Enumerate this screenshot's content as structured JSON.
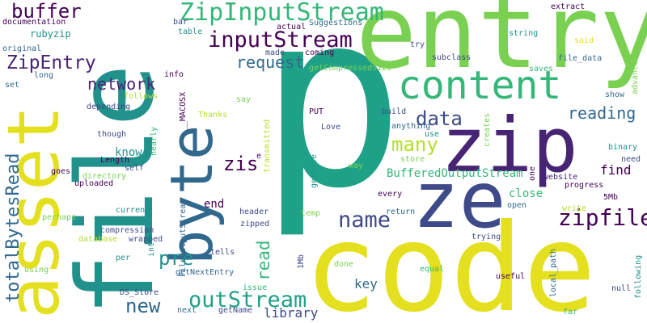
{
  "palette": {
    "yellow": "#e4e01f",
    "lime": "#7ad151",
    "green": "#35b779",
    "teal": "#1fa187",
    "cyan": "#21918c",
    "blue": "#31688e",
    "indigo": "#3e4a89",
    "purple": "#440154",
    "violet": "#482475",
    "chartreuse": "#b5de2b"
  },
  "words": [
    {
      "text": "p",
      "color": "#1fa187"
    },
    {
      "text": "code",
      "color": "#e4e01f"
    },
    {
      "text": "entry",
      "color": "#7ad151"
    },
    {
      "text": "file",
      "color": "#21918c"
    },
    {
      "text": "asset",
      "color": "#e4e01f"
    },
    {
      "text": "zip",
      "color": "#482475"
    },
    {
      "text": "ze",
      "color": "#3e4a89"
    },
    {
      "text": "byte",
      "color": "#31688e"
    },
    {
      "text": "content",
      "color": "#35b779"
    },
    {
      "text": "ZipInputStream",
      "color": "#35b779"
    },
    {
      "text": "inputStream",
      "color": "#440154"
    },
    {
      "text": "totalBytesRead",
      "color": "#31688e"
    },
    {
      "text": "buffer",
      "color": "#440154"
    },
    {
      "text": "ZipEntry",
      "color": "#482475"
    },
    {
      "text": "outStream",
      "color": "#1fa187"
    },
    {
      "text": "zipfile",
      "color": "#440154"
    },
    {
      "text": "name",
      "color": "#3e4a89"
    },
    {
      "text": "many",
      "color": "#b5de2b"
    },
    {
      "text": "data",
      "color": "#3e4a89"
    },
    {
      "text": "network",
      "color": "#482475"
    },
    {
      "text": "request",
      "color": "#31688e"
    },
    {
      "text": "reading",
      "color": "#31688e"
    },
    {
      "text": "pre",
      "color": "#21918c"
    },
    {
      "text": "new",
      "color": "#31688e"
    },
    {
      "text": "zis",
      "color": "#440154"
    },
    {
      "text": "read",
      "color": "#35b779"
    },
    {
      "text": "BufferedOutputStream",
      "color": "#35b779"
    },
    {
      "text": "key",
      "color": "#31688e"
    },
    {
      "text": "library",
      "color": "#3e4a89"
    },
    {
      "text": "find",
      "color": "#440154"
    },
    {
      "text": "close",
      "color": "#35b779"
    },
    {
      "text": "end",
      "color": "#440154"
    },
    {
      "text": "rubyzip",
      "color": "#21918c"
    },
    {
      "text": "know",
      "color": "#21918c"
    },
    {
      "text": "documentation",
      "color": "#440154"
    },
    {
      "text": "original",
      "color": "#31688e"
    },
    {
      "text": "long",
      "color": "#31688e"
    },
    {
      "text": "set",
      "color": "#31688e"
    },
    {
      "text": "depending",
      "color": "#3e4a89"
    },
    {
      "text": "though",
      "color": "#3e4a89"
    },
    {
      "text": "Length",
      "color": "#440154"
    },
    {
      "text": "self",
      "color": "#3e4a89"
    },
    {
      "text": "goes",
      "color": "#440154"
    },
    {
      "text": "directory",
      "color": "#7ad151"
    },
    {
      "text": "uploaded",
      "color": "#440154"
    },
    {
      "text": "perhaps",
      "color": "#7ad151"
    },
    {
      "text": "current",
      "color": "#21918c"
    },
    {
      "text": "compression",
      "color": "#3e4a89"
    },
    {
      "text": "database",
      "color": "#b5de2b"
    },
    {
      "text": "wrapped",
      "color": "#3e4a89"
    },
    {
      "text": "per",
      "color": "#21918c"
    },
    {
      "text": "using",
      "color": "#7ad151"
    },
    {
      "text": "follows",
      "color": "#b5de2b"
    },
    {
      "text": "info",
      "color": "#440154"
    },
    {
      "text": "__MACOSX",
      "color": "#440154"
    },
    {
      "text": "Thanks",
      "color": "#b5de2b"
    },
    {
      "text": "nearly",
      "color": "#35b779"
    },
    {
      "text": "int",
      "color": "#21918c"
    },
    {
      "text": "FileOutputStream",
      "color": "#31688e"
    },
    {
      "text": "header",
      "color": "#3e4a89"
    },
    {
      "text": "zipped",
      "color": "#3e4a89"
    },
    {
      "text": "tells",
      "color": "#3e4a89"
    },
    {
      "text": "getNextEntry",
      "color": "#31688e"
    },
    {
      "text": "DS_Store",
      "color": "#3e4a89"
    },
    {
      "text": "issue",
      "color": "#35b779"
    },
    {
      "text": "next",
      "color": "#31688e"
    },
    {
      "text": "getName",
      "color": "#3e4a89"
    },
    {
      "text": "1Mb",
      "color": "#3e4a89"
    },
    {
      "text": "done",
      "color": "#7ad151"
    },
    {
      "text": "equal",
      "color": "#35b779"
    },
    {
      "text": "useful",
      "color": "#440154"
    },
    {
      "text": "local_path",
      "color": "#31688e"
    },
    {
      "text": "far",
      "color": "#35b779"
    },
    {
      "text": "null",
      "color": "#3e4a89"
    },
    {
      "text": "following",
      "color": "#21918c"
    },
    {
      "text": "bar",
      "color": "#3e4a89"
    },
    {
      "text": "table",
      "color": "#21918c"
    },
    {
      "text": "actual",
      "color": "#440154"
    },
    {
      "text": "made",
      "color": "#3e4a89"
    },
    {
      "text": "coming",
      "color": "#440154"
    },
    {
      "text": "Suggestions",
      "color": "#31688e"
    },
    {
      "text": "try",
      "color": "#3e4a89"
    },
    {
      "text": "subclass",
      "color": "#3e4a89"
    },
    {
      "text": "getCompressedSize",
      "color": "#7ad151"
    },
    {
      "text": "extract",
      "color": "#440154"
    },
    {
      "text": "string",
      "color": "#21918c"
    },
    {
      "text": "said",
      "color": "#e4e01f"
    },
    {
      "text": "file_data",
      "color": "#31688e"
    },
    {
      "text": "saves",
      "color": "#35b779"
    },
    {
      "text": "advance",
      "color": "#7ad151"
    },
    {
      "text": "show",
      "color": "#31688e"
    },
    {
      "text": "say",
      "color": "#7ad151"
    },
    {
      "text": "transmitted",
      "color": "#b5de2b"
    },
    {
      "text": "PUT",
      "color": "#440154"
    },
    {
      "text": "build",
      "color": "#3e4a89"
    },
    {
      "text": "Love",
      "color": "#3e4a89"
    },
    {
      "text": "anything",
      "color": "#31688e"
    },
    {
      "text": "use",
      "color": "#21918c"
    },
    {
      "text": "store",
      "color": "#7ad151"
    },
    {
      "text": "creates",
      "color": "#7ad151"
    },
    {
      "text": "binary",
      "color": "#21918c"
    },
    {
      "text": "need",
      "color": "#3e4a89"
    },
    {
      "text": "website",
      "color": "#482475"
    },
    {
      "text": "progress",
      "color": "#440154"
    },
    {
      "text": "one",
      "color": "#440154"
    },
    {
      "text": "way",
      "color": "#7ad151"
    },
    {
      "text": "getSize",
      "color": "#21918c"
    },
    {
      "text": "e",
      "color": "#440154"
    },
    {
      "text": "every",
      "color": "#440154"
    },
    {
      "text": "5Mb",
      "color": "#440154"
    },
    {
      "text": "open",
      "color": "#31688e"
    },
    {
      "text": "write",
      "color": "#b5de2b"
    },
    {
      "text": "temp",
      "color": "#7ad151"
    },
    {
      "text": "return",
      "color": "#31688e"
    },
    {
      "text": "trying",
      "color": "#3e4a89"
    }
  ]
}
